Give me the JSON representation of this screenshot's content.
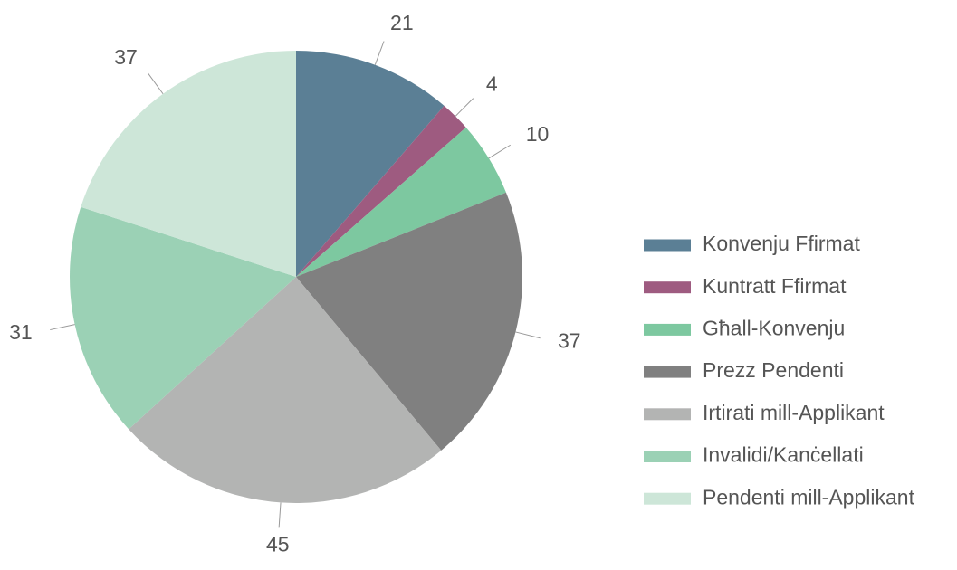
{
  "chart_data": {
    "type": "pie",
    "categories": [
      "Konvenju Ffirmat",
      "Kuntratt Ffirmat",
      "Għall-Konvenju",
      "Prezz Pendenti",
      "Irtirati mill-Applikant",
      "Invalidi/Kanċellati",
      "Pendenti mill-Applikant"
    ],
    "values": [
      21,
      4,
      10,
      37,
      45,
      31,
      37
    ],
    "colors": [
      "#5b7f95",
      "#9e5b80",
      "#7dc8a0",
      "#808080",
      "#b3b4b3",
      "#9bd1b5",
      "#cde6d8"
    ],
    "legend": "right"
  }
}
